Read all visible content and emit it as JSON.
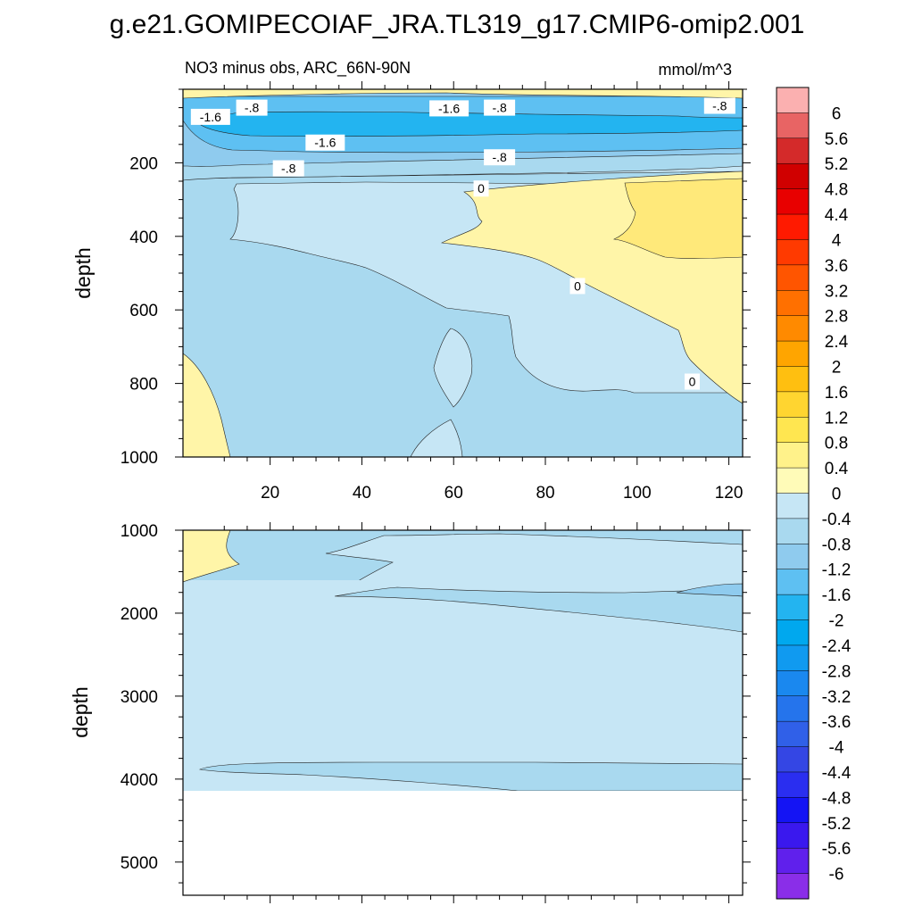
{
  "title": "g.e21.GOMIPECOIAF_JRA.TL319_g17.CMIP6-omip2.001",
  "chart_data": {
    "type": "contour",
    "subtitle_left": "NO3 minus obs, ARC_66N-90N",
    "subtitle_right": "mmol/m^3",
    "x_range": [
      1,
      123
    ],
    "x_ticks": [
      20,
      40,
      60,
      80,
      100,
      120
    ],
    "x_tick_labels": [
      "20",
      "40",
      "60",
      "80",
      "100",
      "120"
    ],
    "panels": [
      {
        "ylabel": "depth",
        "ylim": [
          0,
          1000
        ],
        "y_ticks": [
          200,
          400,
          600,
          800,
          1000
        ],
        "y_tick_labels": [
          "200",
          "400",
          "600",
          "800",
          "1000"
        ],
        "contour_labels": [
          {
            "text": "-1.6",
            "x": 7,
            "y": 75
          },
          {
            "text": "-.8",
            "x": 16,
            "y": 50
          },
          {
            "text": "-1.6",
            "x": 59,
            "y": 52
          },
          {
            "text": "-.8",
            "x": 70,
            "y": 50
          },
          {
            "text": "-.8",
            "x": 118,
            "y": 45
          },
          {
            "text": "-1.6",
            "x": 32,
            "y": 145
          },
          {
            "text": "-.8",
            "x": 70,
            "y": 185
          },
          {
            "text": "-.8",
            "x": 24,
            "y": 215
          },
          {
            "text": "0",
            "x": 66,
            "y": 270
          },
          {
            "text": "0",
            "x": 87,
            "y": 535
          },
          {
            "text": "0",
            "x": 112,
            "y": 795
          }
        ]
      },
      {
        "ylabel": "depth",
        "ylim": [
          1000,
          5400
        ],
        "y_ticks": [
          1000,
          2000,
          3000,
          4000,
          5000
        ],
        "y_tick_labels": [
          "1000",
          "2000",
          "3000",
          "4000",
          "5000"
        ],
        "seafloor_depth": 4120
      }
    ]
  },
  "colorbar": {
    "labels": [
      "6",
      "5.6",
      "5.2",
      "4.8",
      "4.4",
      "4",
      "3.6",
      "3.2",
      "2.8",
      "2.4",
      "2",
      "1.6",
      "1.2",
      "0.8",
      "0.4",
      "0",
      "-0.4",
      "-0.8",
      "-1.2",
      "-1.6",
      "-2",
      "-2.4",
      "-2.8",
      "-3.2",
      "-3.6",
      "-4",
      "-4.4",
      "-4.8",
      "-5.2",
      "-5.6",
      "-6"
    ],
    "colors": [
      "#fbb0b0",
      "#e86464",
      "#d42a2a",
      "#d00000",
      "#e80000",
      "#ff1a00",
      "#ff3a00",
      "#ff5500",
      "#ff7000",
      "#ff8a00",
      "#ffa500",
      "#ffbf10",
      "#ffd530",
      "#ffe650",
      "#fff28a",
      "#fffbb8",
      "#c6e6f5",
      "#a9d9ef",
      "#8fcbee",
      "#5ec0f2",
      "#23b4f0",
      "#00a8ee",
      "#109af0",
      "#1a88ef",
      "#2574ec",
      "#3060e8",
      "#3446e4",
      "#2a2ef0",
      "#1414f4",
      "#3a18ee",
      "#6020ec",
      "#8a2ee8"
    ]
  }
}
